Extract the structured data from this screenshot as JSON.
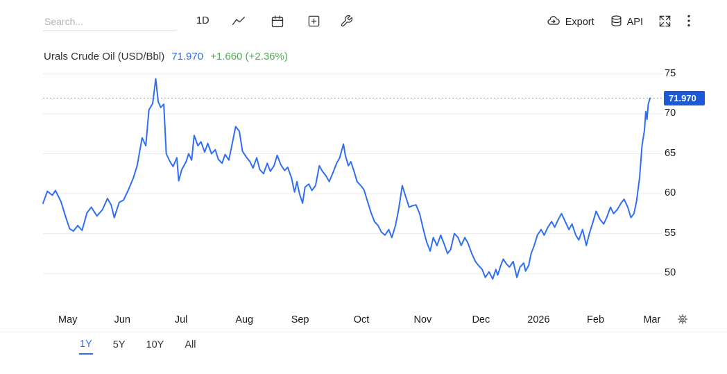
{
  "toolbar": {
    "search_placeholder": "Search...",
    "interval_label": "1D",
    "export_label": "Export",
    "api_label": "API",
    "left_icons": [
      "line-style-icon",
      "calendar-icon",
      "compare-icon",
      "tools-icon"
    ],
    "right_icons": [
      "export-cloud-icon",
      "api-database-icon",
      "fullscreen-icon",
      "kebab-menu-icon"
    ]
  },
  "header": {
    "title": "Urals Crude Oil (USD/Bbl)",
    "price": "71.970",
    "change": "+1.660 (+2.36%)"
  },
  "range_tabs": [
    {
      "label": "1Y",
      "active": true
    },
    {
      "label": "5Y",
      "active": false
    },
    {
      "label": "10Y",
      "active": false
    },
    {
      "label": "All",
      "active": false
    }
  ],
  "colors": {
    "line": "#2f6df2",
    "price_text": "#2f6df2",
    "change_text": "#4caf50",
    "price_tag_bg": "#1b59d6",
    "grid": "#ebebeb",
    "price_line": "#94a3b8",
    "active_tab": "#2f6df2"
  },
  "chart_data": {
    "type": "line",
    "title": "Urals Crude Oil (USD/Bbl)",
    "ylabel": "USD/Bbl",
    "last_price": "71.970",
    "last_value": 71.97,
    "x_range": [
      "May 2025",
      "Mar 2026"
    ],
    "ylim": [
      45.4,
      76.0
    ],
    "y_ticks": [
      75,
      70,
      65,
      60,
      55,
      50
    ],
    "x_ticks": [
      {
        "label": "May",
        "pos": 0.04
      },
      {
        "label": "Jun",
        "pos": 0.128
      },
      {
        "label": "Jul",
        "pos": 0.223
      },
      {
        "label": "Aug",
        "pos": 0.325
      },
      {
        "label": "Sep",
        "pos": 0.415
      },
      {
        "label": "Oct",
        "pos": 0.514
      },
      {
        "label": "Nov",
        "pos": 0.613
      },
      {
        "label": "Dec",
        "pos": 0.707
      },
      {
        "label": "2026",
        "pos": 0.8
      },
      {
        "label": "Feb",
        "pos": 0.892
      },
      {
        "label": "Mar",
        "pos": 0.983
      }
    ],
    "grid": true,
    "legend": false,
    "points": [
      [
        0.0,
        58.8
      ],
      [
        0.007,
        60.3
      ],
      [
        0.015,
        59.8
      ],
      [
        0.02,
        60.4
      ],
      [
        0.029,
        59.0
      ],
      [
        0.037,
        57.0
      ],
      [
        0.043,
        55.6
      ],
      [
        0.049,
        55.3
      ],
      [
        0.056,
        56.0
      ],
      [
        0.063,
        55.4
      ],
      [
        0.071,
        57.6
      ],
      [
        0.078,
        58.3
      ],
      [
        0.087,
        57.2
      ],
      [
        0.096,
        58.0
      ],
      [
        0.104,
        59.4
      ],
      [
        0.11,
        58.6
      ],
      [
        0.115,
        57.0
      ],
      [
        0.123,
        58.9
      ],
      [
        0.13,
        59.2
      ],
      [
        0.138,
        60.5
      ],
      [
        0.146,
        62.0
      ],
      [
        0.152,
        63.5
      ],
      [
        0.16,
        67.0
      ],
      [
        0.166,
        66.0
      ],
      [
        0.171,
        70.5
      ],
      [
        0.177,
        71.3
      ],
      [
        0.182,
        74.4
      ],
      [
        0.186,
        71.5
      ],
      [
        0.19,
        70.8
      ],
      [
        0.195,
        71.2
      ],
      [
        0.199,
        65.0
      ],
      [
        0.205,
        64.0
      ],
      [
        0.21,
        63.4
      ],
      [
        0.216,
        64.5
      ],
      [
        0.219,
        61.6
      ],
      [
        0.224,
        63.0
      ],
      [
        0.231,
        64.0
      ],
      [
        0.235,
        65.0
      ],
      [
        0.24,
        64.2
      ],
      [
        0.244,
        67.3
      ],
      [
        0.25,
        66.0
      ],
      [
        0.255,
        66.5
      ],
      [
        0.261,
        65.2
      ],
      [
        0.266,
        66.3
      ],
      [
        0.272,
        65.0
      ],
      [
        0.278,
        65.5
      ],
      [
        0.283,
        64.3
      ],
      [
        0.289,
        63.8
      ],
      [
        0.294,
        64.9
      ],
      [
        0.3,
        64.2
      ],
      [
        0.306,
        66.5
      ],
      [
        0.311,
        68.4
      ],
      [
        0.317,
        67.8
      ],
      [
        0.322,
        65.3
      ],
      [
        0.328,
        64.6
      ],
      [
        0.334,
        64.0
      ],
      [
        0.339,
        63.2
      ],
      [
        0.345,
        64.5
      ],
      [
        0.35,
        63.0
      ],
      [
        0.356,
        62.5
      ],
      [
        0.362,
        63.8
      ],
      [
        0.367,
        62.8
      ],
      [
        0.373,
        63.5
      ],
      [
        0.378,
        64.8
      ],
      [
        0.384,
        63.6
      ],
      [
        0.39,
        62.9
      ],
      [
        0.395,
        63.3
      ],
      [
        0.401,
        62.0
      ],
      [
        0.406,
        60.2
      ],
      [
        0.41,
        61.5
      ],
      [
        0.414,
        60.0
      ],
      [
        0.419,
        58.8
      ],
      [
        0.423,
        60.8
      ],
      [
        0.429,
        61.2
      ],
      [
        0.434,
        60.4
      ],
      [
        0.44,
        61.0
      ],
      [
        0.446,
        63.5
      ],
      [
        0.451,
        62.8
      ],
      [
        0.457,
        62.2
      ],
      [
        0.462,
        61.5
      ],
      [
        0.468,
        62.6
      ],
      [
        0.474,
        63.8
      ],
      [
        0.479,
        64.5
      ],
      [
        0.485,
        66.2
      ],
      [
        0.488,
        64.8
      ],
      [
        0.493,
        63.5
      ],
      [
        0.497,
        64.0
      ],
      [
        0.502,
        62.8
      ],
      [
        0.507,
        61.5
      ],
      [
        0.513,
        61.0
      ],
      [
        0.518,
        60.5
      ],
      [
        0.524,
        59.0
      ],
      [
        0.53,
        57.5
      ],
      [
        0.535,
        56.5
      ],
      [
        0.541,
        56.0
      ],
      [
        0.546,
        55.2
      ],
      [
        0.552,
        54.8
      ],
      [
        0.558,
        55.5
      ],
      [
        0.563,
        54.5
      ],
      [
        0.569,
        56.0
      ],
      [
        0.574,
        58.0
      ],
      [
        0.58,
        61.0
      ],
      [
        0.586,
        59.5
      ],
      [
        0.591,
        58.3
      ],
      [
        0.597,
        58.5
      ],
      [
        0.602,
        58.6
      ],
      [
        0.608,
        57.5
      ],
      [
        0.614,
        55.5
      ],
      [
        0.619,
        54.0
      ],
      [
        0.625,
        52.8
      ],
      [
        0.63,
        54.5
      ],
      [
        0.636,
        53.5
      ],
      [
        0.642,
        54.8
      ],
      [
        0.647,
        53.8
      ],
      [
        0.653,
        52.5
      ],
      [
        0.658,
        53.0
      ],
      [
        0.664,
        55.0
      ],
      [
        0.67,
        54.5
      ],
      [
        0.675,
        53.5
      ],
      [
        0.681,
        54.5
      ],
      [
        0.686,
        53.8
      ],
      [
        0.692,
        52.5
      ],
      [
        0.698,
        51.5
      ],
      [
        0.703,
        51.0
      ],
      [
        0.709,
        50.5
      ],
      [
        0.714,
        49.5
      ],
      [
        0.72,
        50.2
      ],
      [
        0.726,
        49.3
      ],
      [
        0.731,
        50.5
      ],
      [
        0.734,
        49.8
      ],
      [
        0.739,
        51.0
      ],
      [
        0.743,
        51.8
      ],
      [
        0.748,
        51.2
      ],
      [
        0.753,
        50.8
      ],
      [
        0.759,
        51.5
      ],
      [
        0.765,
        49.5
      ],
      [
        0.77,
        50.8
      ],
      [
        0.776,
        51.3
      ],
      [
        0.779,
        50.3
      ],
      [
        0.784,
        51.0
      ],
      [
        0.788,
        52.5
      ],
      [
        0.793,
        53.5
      ],
      [
        0.798,
        54.8
      ],
      [
        0.804,
        55.5
      ],
      [
        0.809,
        54.8
      ],
      [
        0.815,
        55.8
      ],
      [
        0.821,
        56.5
      ],
      [
        0.826,
        55.8
      ],
      [
        0.832,
        56.8
      ],
      [
        0.837,
        57.5
      ],
      [
        0.843,
        56.5
      ],
      [
        0.849,
        55.5
      ],
      [
        0.854,
        56.2
      ],
      [
        0.86,
        54.8
      ],
      [
        0.865,
        54.2
      ],
      [
        0.871,
        55.5
      ],
      [
        0.877,
        53.5
      ],
      [
        0.882,
        55.0
      ],
      [
        0.888,
        56.5
      ],
      [
        0.893,
        57.8
      ],
      [
        0.899,
        56.8
      ],
      [
        0.905,
        56.2
      ],
      [
        0.91,
        57.0
      ],
      [
        0.916,
        58.3
      ],
      [
        0.921,
        57.5
      ],
      [
        0.927,
        58.0
      ],
      [
        0.933,
        58.8
      ],
      [
        0.938,
        59.3
      ],
      [
        0.944,
        58.3
      ],
      [
        0.949,
        57.0
      ],
      [
        0.954,
        57.5
      ],
      [
        0.958,
        59.0
      ],
      [
        0.963,
        62.0
      ],
      [
        0.967,
        66.0
      ],
      [
        0.971,
        68.0
      ],
      [
        0.973,
        70.3
      ],
      [
        0.975,
        69.3
      ],
      [
        0.977,
        71.2
      ],
      [
        0.98,
        71.97
      ]
    ]
  }
}
